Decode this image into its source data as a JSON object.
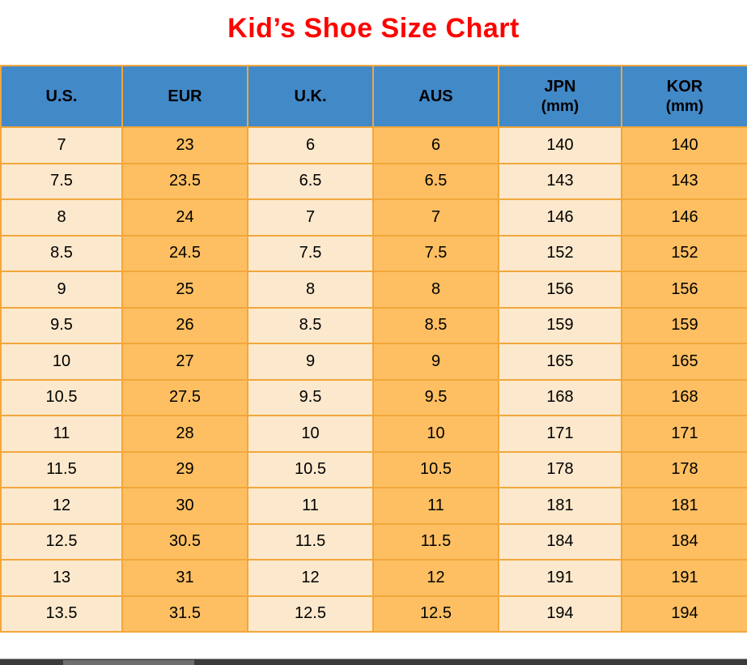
{
  "page": {
    "title_label": "Kid’s Shoe Size Chart"
  },
  "colors": {
    "title": "#ff0000",
    "header_bg": "#4289c8",
    "cell_border": "#f2a73b",
    "column_light": "#fce8cc",
    "column_orange": "#fdbf62",
    "scrollbar_track": "#3b3b3b",
    "scrollbar_thumb": "#6f6f6f"
  },
  "chart_data": {
    "type": "table",
    "title": "Kid’s Shoe Size Chart",
    "columns": [
      {
        "label": "U.S.",
        "sub": ""
      },
      {
        "label": "EUR",
        "sub": ""
      },
      {
        "label": "U.K.",
        "sub": ""
      },
      {
        "label": "AUS",
        "sub": ""
      },
      {
        "label": "JPN",
        "sub": "(mm)"
      },
      {
        "label": "KOR",
        "sub": "(mm)"
      }
    ],
    "rows": [
      [
        "7",
        "23",
        "6",
        "6",
        "140",
        "140"
      ],
      [
        "7.5",
        "23.5",
        "6.5",
        "6.5",
        "143",
        "143"
      ],
      [
        "8",
        "24",
        "7",
        "7",
        "146",
        "146"
      ],
      [
        "8.5",
        "24.5",
        "7.5",
        "7.5",
        "152",
        "152"
      ],
      [
        "9",
        "25",
        "8",
        "8",
        "156",
        "156"
      ],
      [
        "9.5",
        "26",
        "8.5",
        "8.5",
        "159",
        "159"
      ],
      [
        "10",
        "27",
        "9",
        "9",
        "165",
        "165"
      ],
      [
        "10.5",
        "27.5",
        "9.5",
        "9.5",
        "168",
        "168"
      ],
      [
        "11",
        "28",
        "10",
        "10",
        "171",
        "171"
      ],
      [
        "11.5",
        "29",
        "10.5",
        "10.5",
        "178",
        "178"
      ],
      [
        "12",
        "30",
        "11",
        "11",
        "181",
        "181"
      ],
      [
        "12.5",
        "30.5",
        "11.5",
        "11.5",
        "184",
        "184"
      ],
      [
        "13",
        "31",
        "12",
        "12",
        "191",
        "191"
      ],
      [
        "13.5",
        "31.5",
        "12.5",
        "12.5",
        "194",
        "194"
      ]
    ]
  }
}
